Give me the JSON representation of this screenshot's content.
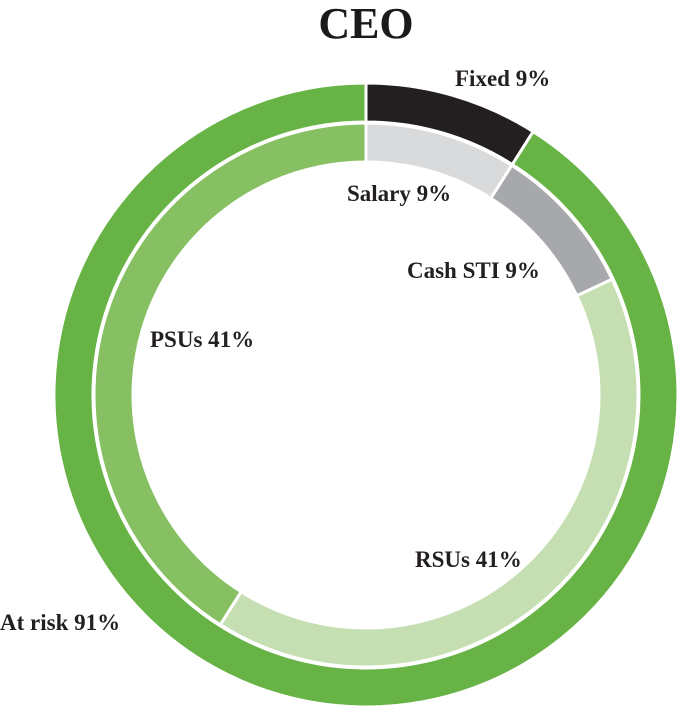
{
  "chart_data": {
    "type": "pie",
    "variant": "nested-donut",
    "title": "CEO",
    "outer_ring": {
      "slices": [
        {
          "label": "Fixed 9%",
          "value": 9,
          "color": "#231f20"
        },
        {
          "label": "At risk 91%",
          "value": 91,
          "color": "#67b345"
        }
      ]
    },
    "inner_ring": {
      "slices": [
        {
          "label": "Salary 9%",
          "value": 9,
          "color": "#d9dadb"
        },
        {
          "label": "Cash STI 9%",
          "value": 9,
          "color": "#a6a8ab"
        },
        {
          "label": "RSUs 41%",
          "value": 41,
          "color": "#c5dfb2"
        },
        {
          "label": "PSUs 41%",
          "value": 41,
          "color": "#86c062"
        }
      ]
    }
  }
}
